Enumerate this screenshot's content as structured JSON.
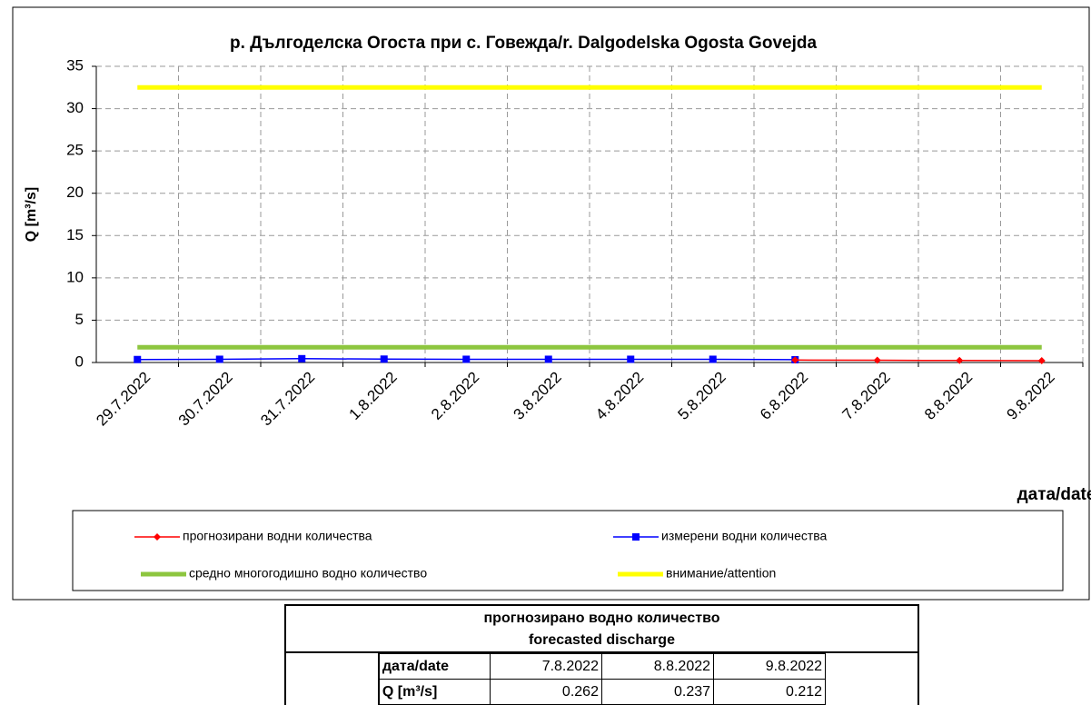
{
  "chart_data": {
    "type": "line",
    "title": "р. Дългоделска Огоста при с. Говежда/r. Dalgodelska Ogosta Govejda",
    "y_label": "Q [m³/s]",
    "x_label": "дата/date",
    "categories": [
      "29.7.2022",
      "30.7.2022",
      "31.7.2022",
      "1.8.2022",
      "2.8.2022",
      "3.8.2022",
      "4.8.2022",
      "5.8.2022",
      "6.8.2022",
      "7.8.2022",
      "8.8.2022",
      "9.8.2022"
    ],
    "series": [
      {
        "name": "прогнозирани водни количества",
        "color": "#ff0000",
        "marker": "diamond",
        "width": 1.5,
        "values": [
          null,
          null,
          null,
          null,
          null,
          null,
          null,
          null,
          0.29,
          0.262,
          0.237,
          0.212
        ]
      },
      {
        "name": "измерени водни количества",
        "color": "#0000ff",
        "marker": "square",
        "width": 1.5,
        "values": [
          0.35,
          0.38,
          0.45,
          0.4,
          0.38,
          0.38,
          0.38,
          0.38,
          0.33,
          null,
          null,
          null
        ]
      },
      {
        "name": "средно многогодишно водно количество",
        "color": "#8dc63f",
        "marker": "none",
        "width": 5,
        "values": [
          1.8,
          1.8,
          1.8,
          1.8,
          1.8,
          1.8,
          1.8,
          1.8,
          1.8,
          1.8,
          1.8,
          1.8
        ]
      },
      {
        "name": "внимание/attention",
        "color": "#ffff00",
        "marker": "none",
        "width": 5,
        "values": [
          32.5,
          32.5,
          32.5,
          32.5,
          32.5,
          32.5,
          32.5,
          32.5,
          32.5,
          32.5,
          32.5,
          32.5
        ]
      }
    ],
    "ylim": [
      0,
      35
    ],
    "yticks": [
      0,
      5,
      10,
      15,
      20,
      25,
      30,
      35
    ],
    "grid": true
  },
  "table": {
    "title": [
      "прогнозирано водно количество",
      "forecasted discharge"
    ],
    "rows": [
      [
        "дата/date",
        "7.8.2022",
        "8.8.2022",
        "9.8.2022"
      ],
      [
        "Q [m³/s]",
        0.262,
        0.237,
        0.212
      ]
    ]
  }
}
